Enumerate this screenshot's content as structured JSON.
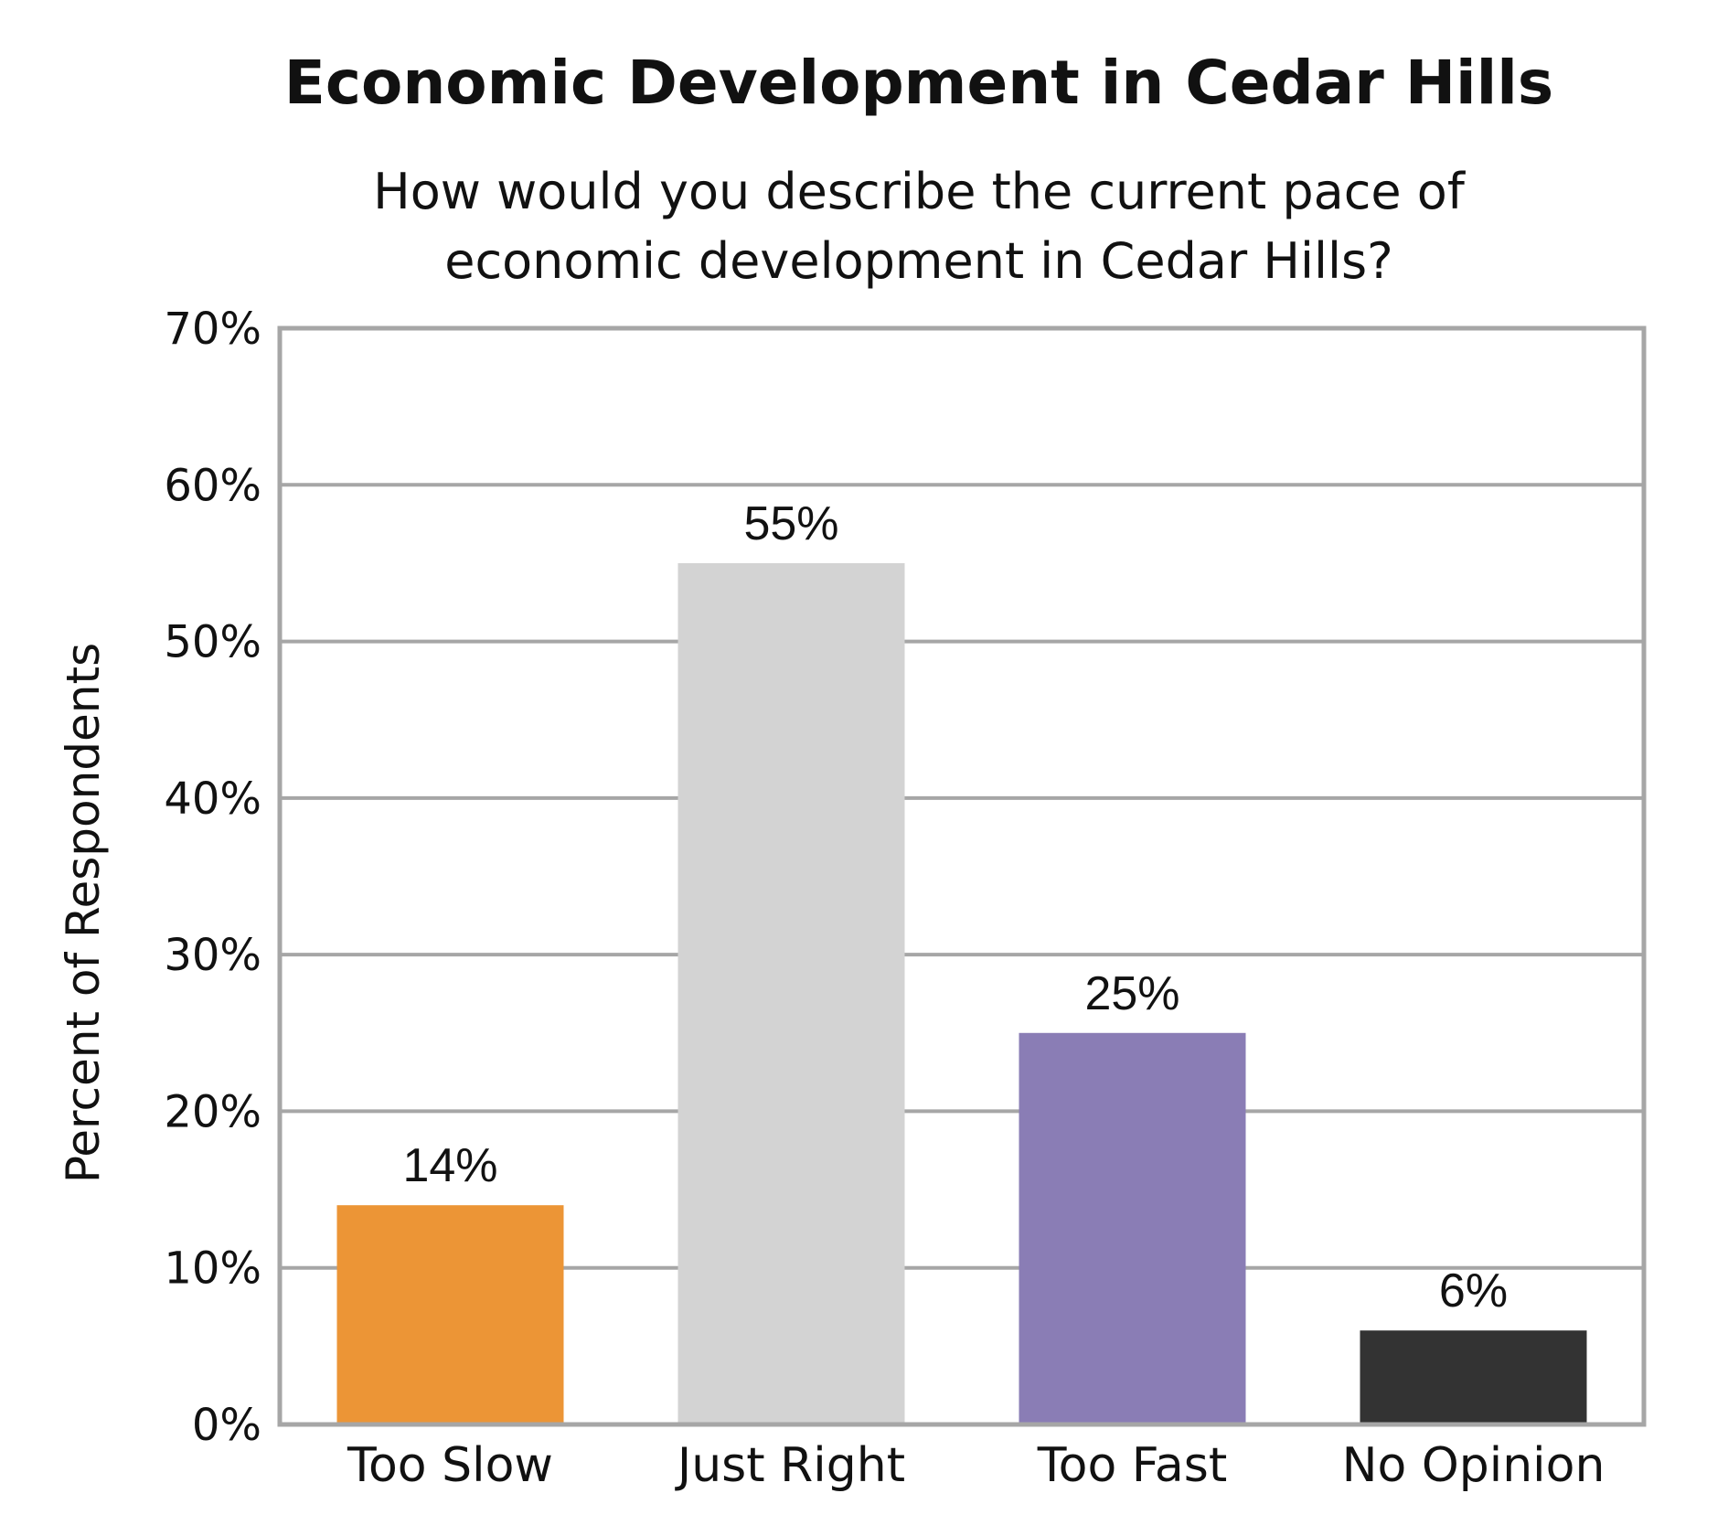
{
  "chart_data": {
    "type": "bar",
    "title": "Economic Development in Cedar Hills",
    "subtitle_lines": [
      "How would you describe the current pace of",
      "economic development in Cedar Hills?"
    ],
    "xlabel": "",
    "ylabel": "Percent of Respondents",
    "categories": [
      "Too Slow",
      "Just Right",
      "Too Fast",
      "No Opinion"
    ],
    "values": [
      14,
      55,
      25,
      6
    ],
    "data_labels": [
      "14%",
      "55%",
      "25%",
      "6%"
    ],
    "bar_colors": [
      "#EC9536",
      "#D3D3D3",
      "#8A7DB5",
      "#333333"
    ],
    "ylim": [
      0,
      70
    ],
    "yticks": [
      0,
      10,
      20,
      30,
      40,
      50,
      60,
      70
    ],
    "ytick_labels": [
      "0%",
      "10%",
      "20%",
      "30%",
      "40%",
      "50%",
      "60%",
      "70%"
    ],
    "grid": true,
    "grid_color": "#A6A6A6",
    "frame_color": "#A6A6A6",
    "legend": "none"
  }
}
